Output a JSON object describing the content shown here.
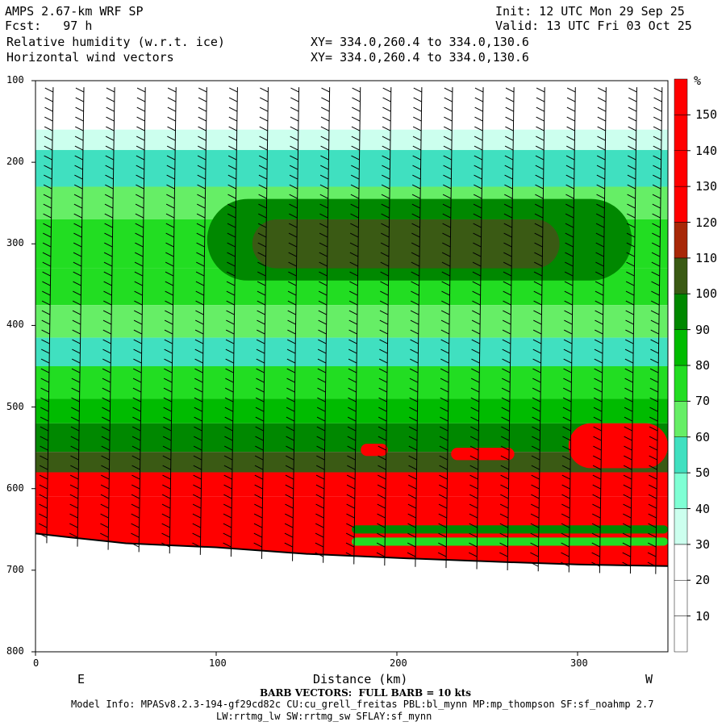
{
  "header": {
    "model": "AMPS 2.67-km WRF SP",
    "init": "Init: 12 UTC Mon 29 Sep 25",
    "fcst": "Fcst:   97 h",
    "valid": "Valid: 13 UTC Fri 03 Oct 25",
    "field1": "Relative humidity (w.r.t. ice)",
    "field2": "Horizontal wind vectors",
    "xy1": "XY= 334.0,260.4 to 334.0,130.6",
    "xy2": "XY= 334.0,260.4 to 334.0,130.6"
  },
  "footer": {
    "barb_note": "BARB VECTORS:  FULL BARB = 10 kts",
    "model_info": "Model Info: MPASv8.2.3-194-gf29cd82c CU:cu_grell_freitas PBL:bl_mynn MP:mp_thompson SF:sf_noahmp 2.7",
    "model_info2": "LW:rrtmg_lw SW:rrtmg_sw SFLAY:sf_mynn"
  },
  "chart_data": {
    "type": "heatmap",
    "title": "Relative humidity (w.r.t. ice)",
    "xlabel": "Distance (km)",
    "ylabel": "",
    "xlim": [
      0,
      350
    ],
    "ylim": [
      800,
      100
    ],
    "x_ticks": [
      0,
      100,
      200,
      300
    ],
    "y_ticks": [
      100,
      200,
      300,
      400,
      500,
      600,
      700,
      800
    ],
    "x_end_labels": {
      "left": "E",
      "right": "W"
    },
    "colorbar": {
      "unit": "%",
      "levels": [
        10,
        20,
        30,
        40,
        50,
        60,
        70,
        80,
        90,
        100,
        110,
        120,
        130,
        140,
        150
      ],
      "colors": [
        "#ffffff",
        "#ffffff",
        "#ffffff",
        "#ccffee",
        "#7fffd4",
        "#40e0c0",
        "#66ee66",
        "#22dd22",
        "#00bb00",
        "#008800",
        "#3a5a14",
        "#a82808",
        "#ff0000",
        "#ff0000",
        "#ff0000",
        "#ff0000"
      ]
    },
    "rh_bands": [
      {
        "p_top": 100,
        "p_bot": 160,
        "rh": 25
      },
      {
        "p_top": 160,
        "p_bot": 185,
        "rh": 35
      },
      {
        "p_top": 185,
        "p_bot": 230,
        "rh": 55
      },
      {
        "p_top": 230,
        "p_bot": 270,
        "rh": 65
      },
      {
        "p_top": 270,
        "p_bot": 330,
        "rh": 75
      },
      {
        "p_top": 330,
        "p_bot": 375,
        "rh": 75
      },
      {
        "p_top": 375,
        "p_bot": 415,
        "rh": 65
      },
      {
        "p_top": 415,
        "p_bot": 450,
        "rh": 55
      },
      {
        "p_top": 450,
        "p_bot": 490,
        "rh": 75
      },
      {
        "p_top": 490,
        "p_bot": 520,
        "rh": 85
      },
      {
        "p_top": 520,
        "p_bot": 555,
        "rh": 95
      },
      {
        "p_top": 555,
        "p_bot": 580,
        "rh": 105
      },
      {
        "p_top": 580,
        "p_bot": 610,
        "rh": 125
      },
      {
        "p_top": 610,
        "p_bot": 700,
        "rh": 135
      }
    ],
    "rh_patches": [
      {
        "x0": 95,
        "x1": 330,
        "p_top": 245,
        "p_bot": 345,
        "rh": 95
      },
      {
        "x0": 120,
        "x1": 290,
        "p_top": 270,
        "p_bot": 330,
        "rh": 105
      },
      {
        "x0": 295,
        "x1": 350,
        "p_top": 520,
        "p_bot": 575,
        "rh": 125
      },
      {
        "x0": 180,
        "x1": 195,
        "p_top": 545,
        "p_bot": 560,
        "rh": 125
      },
      {
        "x0": 230,
        "x1": 265,
        "p_top": 550,
        "p_bot": 565,
        "rh": 125
      },
      {
        "x0": 175,
        "x1": 350,
        "p_top": 645,
        "p_bot": 655,
        "rh": 95
      },
      {
        "x0": 175,
        "x1": 350,
        "p_top": 660,
        "p_bot": 670,
        "rh": 75
      }
    ],
    "terrain_surface_hpa": [
      {
        "x": 0,
        "p": 655
      },
      {
        "x": 20,
        "p": 660
      },
      {
        "x": 50,
        "p": 667
      },
      {
        "x": 100,
        "p": 672
      },
      {
        "x": 150,
        "p": 680
      },
      {
        "x": 200,
        "p": 685
      },
      {
        "x": 260,
        "p": 690
      },
      {
        "x": 300,
        "p": 693
      },
      {
        "x": 350,
        "p": 695
      }
    ],
    "barb_columns_km": [
      8,
      25,
      42,
      59,
      76,
      93,
      110,
      127,
      144,
      161,
      178,
      195,
      212,
      229,
      246,
      263,
      280,
      297,
      314,
      331,
      345
    ]
  }
}
